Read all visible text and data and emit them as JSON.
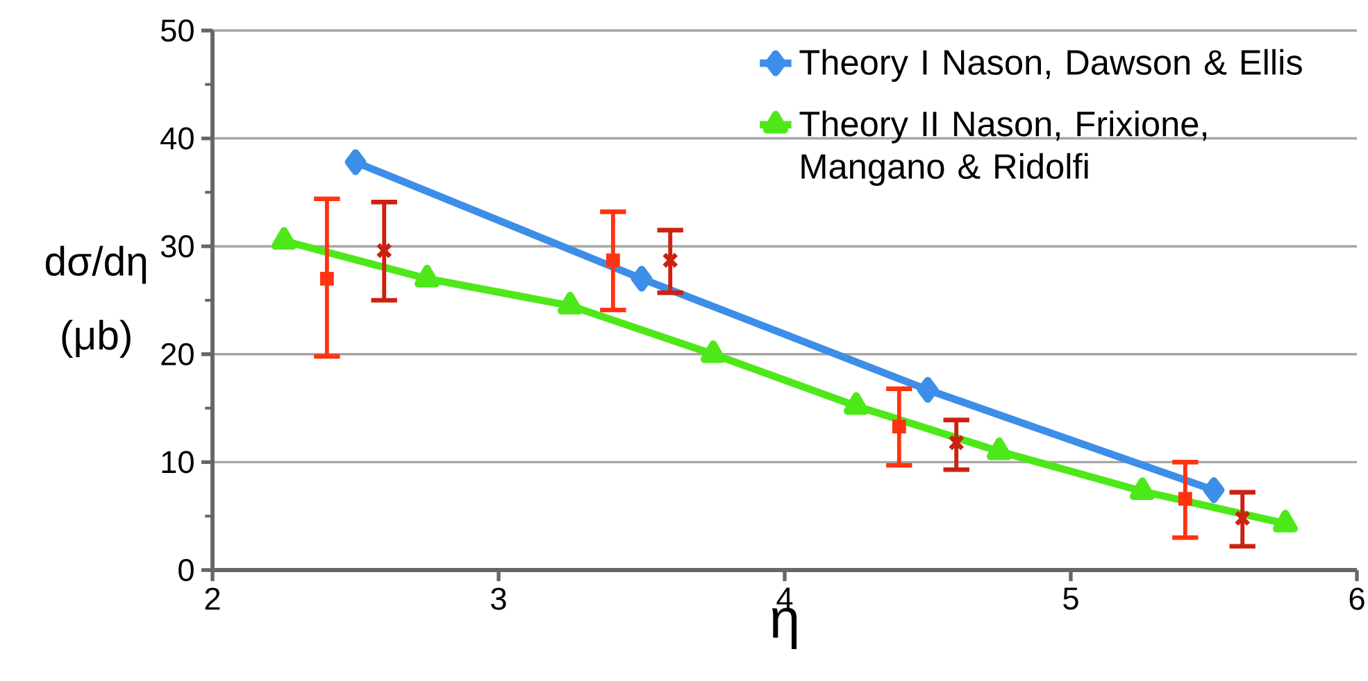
{
  "chart_data": {
    "type": "line",
    "xlabel": "η",
    "ylabel": "dσ/dη (μb)",
    "xlim": [
      2,
      6
    ],
    "xticks": [
      2,
      3,
      4,
      5,
      6
    ],
    "ylim": [
      0,
      50
    ],
    "yticks": [
      0,
      10,
      20,
      30,
      40,
      50
    ],
    "grid": "y",
    "legend": "top right",
    "series": [
      {
        "name": "Theory I Nason, Dawson & Ellis",
        "color": "#3d8ee8",
        "marker": "diamond",
        "x": [
          2.5,
          3.5,
          4.5,
          5.5
        ],
        "values": [
          37.8,
          27,
          16.7,
          7.4
        ]
      },
      {
        "name": "Theory II Nason, Frixione, Mangano & Ridolfi",
        "color": "#4ee81a",
        "marker": "triangle",
        "x": [
          2.25,
          2.75,
          3.25,
          3.75,
          4.25,
          4.75,
          5.25,
          5.75
        ],
        "values": [
          30.5,
          27,
          24.5,
          20,
          15.2,
          11,
          7.3,
          4.3
        ]
      },
      {
        "type": "scatter",
        "color": "#ff3311",
        "marker": "square",
        "x": [
          2.4,
          3.4,
          4.4,
          5.4
        ],
        "values": [
          27,
          28.7,
          13.3,
          6.6
        ],
        "errors": [
          [
            19.8,
            34.4
          ],
          [
            24.1,
            33.2
          ],
          [
            9.7,
            16.8
          ],
          [
            3,
            10
          ]
        ]
      },
      {
        "type": "scatter",
        "color": "#cc2211",
        "marker": "cross",
        "x": [
          2.6,
          3.6,
          4.6,
          5.6
        ],
        "values": [
          29.6,
          28.7,
          11.8,
          4.8
        ],
        "errors": [
          [
            25,
            34.1
          ],
          [
            25.7,
            31.5
          ],
          [
            9.3,
            13.9
          ],
          [
            2.2,
            7.2
          ]
        ]
      }
    ]
  }
}
